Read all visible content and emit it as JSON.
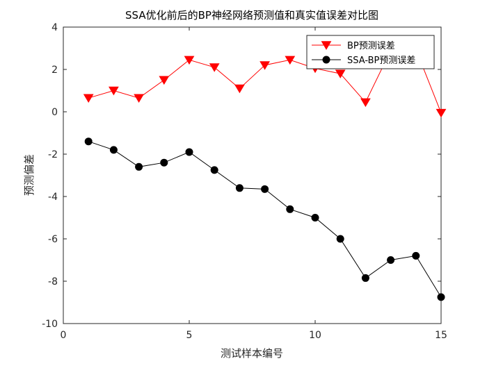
{
  "chart_data": {
    "type": "line",
    "title": "SSA优化前后的BP神经网络预测值和真实值误差对比图",
    "xlabel": "测试样本编号",
    "ylabel": "预测偏差",
    "xlim": [
      0,
      15
    ],
    "ylim": [
      -10,
      4
    ],
    "xticks": [
      0,
      5,
      10,
      15
    ],
    "yticks": [
      4,
      2,
      0,
      -2,
      -4,
      -6,
      -8,
      -10
    ],
    "grid": false,
    "legend_position": "top-right",
    "x": [
      1,
      2,
      3,
      4,
      5,
      6,
      7,
      8,
      9,
      10,
      11,
      12,
      13,
      14,
      15
    ],
    "series": [
      {
        "name": "BP预测误差",
        "color": "#ff0000",
        "marker": "triangle-down",
        "values": [
          0.65,
          1.0,
          0.65,
          1.5,
          2.45,
          2.1,
          1.1,
          2.2,
          2.45,
          2.05,
          1.8,
          0.45,
          2.9,
          2.95,
          -0.05
        ]
      },
      {
        "name": "SSA-BP预测误差",
        "color": "#000000",
        "marker": "circle",
        "values": [
          -1.4,
          -1.8,
          -2.6,
          -2.4,
          -1.9,
          -2.75,
          -3.6,
          -3.65,
          -4.6,
          -5.0,
          -6.0,
          -7.85,
          -7.0,
          -6.8,
          -8.75
        ]
      }
    ]
  }
}
